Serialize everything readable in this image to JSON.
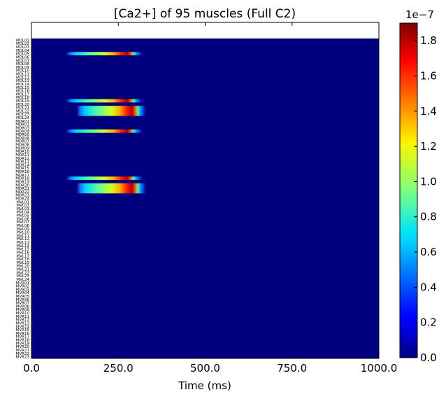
{
  "chart_data": {
    "type": "heatmap",
    "title": "[Ca2+] of 95 muscles (Full C2)",
    "xlabel": "Time (ms)",
    "ylabel": "",
    "xlim": [
      0,
      1000
    ],
    "x_ticks": [
      "0.0",
      "250.0",
      "500.0",
      "750.0",
      "1000.0"
    ],
    "colorbar": {
      "colormap": "jet",
      "range": [
        0.0,
        1.9
      ],
      "ticks": [
        "0.0",
        "0.2",
        "0.4",
        "0.6",
        "0.8",
        "1.0",
        "1.2",
        "1.6",
        "1.8"
      ],
      "tick_values": [
        0.0,
        0.2,
        0.4,
        0.6,
        0.8,
        1.0,
        1.2,
        1.6,
        1.8
      ],
      "extra_ticks": [
        {
          "label": "1.4",
          "value": 1.4
        }
      ],
      "multiplier": "1e−7"
    },
    "rows": [
      "MDL01",
      "MDL02",
      "MDL03",
      "MDL04",
      "MDL05",
      "MDL06",
      "MDL07",
      "MDL08",
      "MDL09",
      "MDL10",
      "MDL11",
      "MDL12",
      "MDL13",
      "MDL14",
      "MDL15",
      "MDL16",
      "MDL17",
      "MDL18",
      "MDL19",
      "MDL20",
      "MDL21",
      "MDL22",
      "MDL23",
      "MDL24",
      "MDR01",
      "MDR02",
      "MDR03",
      "MDR04",
      "MDR05",
      "MDR06",
      "MDR07",
      "MDR08",
      "MDR09",
      "MDR10",
      "MDR11",
      "MDR12",
      "MDR13",
      "MDR14",
      "MDR15",
      "MDR16",
      "MDR17",
      "MDR18",
      "MDR19",
      "MDR20",
      "MDR21",
      "MDR22",
      "MDR23",
      "MDR24",
      "MVL01",
      "MVL02",
      "MVL03",
      "MVL04",
      "MVL05",
      "MVL06",
      "MVL07",
      "MVL08",
      "MVL09",
      "MVL10",
      "MVL11",
      "MVL12",
      "MVL13",
      "MVL14",
      "MVL15",
      "MVL16",
      "MVL17",
      "MVL18",
      "MVL19",
      "MVL20",
      "MVL21",
      "MVL22",
      "MVL23",
      "MVL24",
      "MVR01",
      "MVR02",
      "MVR03",
      "MVR04",
      "MVR05",
      "MVR06",
      "MVR07",
      "MVR08",
      "MVR09",
      "MVR10",
      "MVR11",
      "MVR12",
      "MVR13",
      "MVR14",
      "MVR15",
      "MVR16",
      "MVR17",
      "MVR18",
      "MVR19",
      "MVR20",
      "MVR21",
      "MVR22",
      "MVR23"
    ],
    "active_bands": [
      {
        "rows": [
          "MDL05"
        ],
        "start_ms": 100,
        "end_ms": 320,
        "peak": 1.9
      },
      {
        "rows": [
          "MDL19"
        ],
        "start_ms": 100,
        "end_ms": 320,
        "peak": 1.9
      },
      {
        "rows": [
          "MDL21",
          "MDL22",
          "MDL23"
        ],
        "start_ms": 130,
        "end_ms": 330,
        "peak": 1.9
      },
      {
        "rows": [
          "MDR04"
        ],
        "start_ms": 100,
        "end_ms": 320,
        "peak": 1.9
      },
      {
        "rows": [
          "MDR18"
        ],
        "start_ms": 100,
        "end_ms": 320,
        "peak": 1.9
      },
      {
        "rows": [
          "MDR20",
          "MDR21",
          "MDR22"
        ],
        "start_ms": 130,
        "end_ms": 330,
        "peak": 1.9
      }
    ],
    "background_value": 0.0,
    "grid": false
  }
}
